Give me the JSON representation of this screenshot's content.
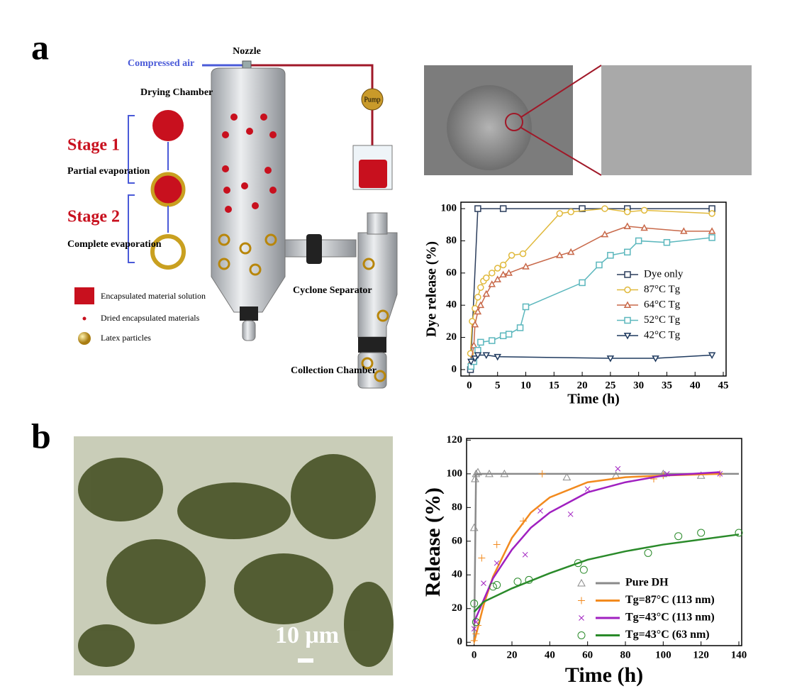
{
  "panels": [
    "a",
    "b"
  ],
  "diagram": {
    "compressed_air": "Compressed air",
    "nozzle": "Nozzle",
    "pump": "Pump",
    "drying_chamber": "Drying Chamber",
    "stage1": "Stage 1",
    "stage1_desc": "Partial evaporation",
    "stage2": "Stage 2",
    "stage2_desc": "Complete evaporation",
    "legend": [
      "Encapsulated material solution",
      "Dried encapsulated materials",
      "Latex particles"
    ],
    "cyclone": "Cyclone Separator",
    "collection": "Collection Chamber"
  },
  "micrograph": {
    "scale_bar": "10 μm"
  },
  "chart_data": [
    {
      "type": "line",
      "xlabel": "Time (h)",
      "ylabel": "Dye release (%)",
      "xlim": [
        -1.5,
        45.5
      ],
      "ylim": [
        -4,
        104
      ],
      "xticks": [
        0,
        5,
        10,
        15,
        20,
        25,
        30,
        35,
        40,
        45
      ],
      "yticks": [
        0,
        20,
        40,
        60,
        80,
        100
      ],
      "legend": "right",
      "series": [
        {
          "name": "Dye only",
          "color": "#2b3d5c",
          "marker": "square",
          "x": [
            0.2,
            1.5,
            6,
            20,
            28,
            43
          ],
          "values": [
            0,
            100,
            100,
            100,
            100,
            100
          ]
        },
        {
          "name": "87°C Tg",
          "color": "#e0b93c",
          "marker": "circle",
          "x": [
            0.2,
            0.5,
            1,
            1.5,
            2,
            2.5,
            3,
            4,
            5,
            6,
            7.5,
            9.5,
            16,
            18,
            24,
            28,
            31,
            43
          ],
          "values": [
            10,
            30,
            38,
            45,
            51,
            55,
            57,
            60,
            63,
            65,
            71,
            72,
            97,
            98,
            100,
            98,
            99,
            97
          ]
        },
        {
          "name": "64°C Tg",
          "color": "#c8694a",
          "marker": "triangle-up",
          "x": [
            0.3,
            0.8,
            1,
            1.5,
            2,
            3,
            4,
            5,
            6,
            7,
            10,
            16,
            18,
            24,
            28,
            31,
            38,
            43
          ],
          "values": [
            5,
            15,
            28,
            36,
            40,
            47,
            53,
            56,
            59,
            60,
            64,
            71,
            73,
            84,
            89,
            88,
            86,
            86
          ]
        },
        {
          "name": "52°C Tg",
          "color": "#5bb7bd",
          "marker": "square",
          "x": [
            0.3,
            0.8,
            1.5,
            2,
            4,
            6,
            7,
            9,
            10,
            20,
            23,
            25,
            28,
            30,
            35,
            43
          ],
          "values": [
            2,
            5,
            12,
            17,
            18,
            21,
            22,
            26,
            39,
            54,
            65,
            71,
            73,
            80,
            79,
            82
          ]
        },
        {
          "name": "42°C Tg",
          "color": "#1f3a5f",
          "marker": "triangle-down",
          "x": [
            0.3,
            1,
            1.5,
            3,
            5,
            25,
            33,
            43
          ],
          "values": [
            5,
            7,
            9,
            9,
            8,
            7,
            7,
            9
          ]
        }
      ]
    },
    {
      "type": "scatter",
      "xlabel": "Time (h)",
      "ylabel": "Release (%)",
      "xlim": [
        -4,
        141.5
      ],
      "ylim": [
        -2,
        121
      ],
      "xticks": [
        0,
        20,
        40,
        60,
        80,
        100,
        120,
        140
      ],
      "yticks": [
        0,
        20,
        40,
        60,
        80,
        100,
        120
      ],
      "legend": "lower right",
      "series": [
        {
          "name": "Pure DH",
          "color": "#8a8a8a",
          "marker": "triangle-up",
          "x": [
            0,
            0.5,
            1,
            2,
            8,
            16,
            49,
            75,
            100,
            120
          ],
          "values": [
            68,
            97,
            100,
            101,
            100,
            100,
            98,
            99,
            100,
            99
          ],
          "fit_x": [
            0,
            1,
            140
          ],
          "fit_values": [
            0,
            100,
            100
          ]
        },
        {
          "name": "Tg=87°C (113 nm)",
          "color": "#f28a1e",
          "marker": "plus",
          "x": [
            0,
            1,
            2,
            4,
            12,
            26,
            36,
            95,
            100,
            130
          ],
          "values": [
            1,
            5,
            10,
            50,
            58,
            72,
            100,
            97,
            99,
            100
          ],
          "fit_x": [
            0,
            5,
            10,
            20,
            30,
            40,
            60,
            80,
            100,
            130
          ],
          "fit_values": [
            0,
            22,
            39,
            62,
            77,
            86,
            95,
            98,
            99,
            100
          ]
        },
        {
          "name": "Tg=43°C (113 nm)",
          "color": "#a020c0",
          "marker": "cross",
          "x": [
            0,
            1,
            5,
            12,
            27,
            35,
            51,
            60,
            76,
            102,
            130
          ],
          "values": [
            8,
            12,
            35,
            47,
            52,
            78,
            76,
            91,
            103,
            100,
            100
          ],
          "fit_x": [
            0,
            10,
            20,
            30,
            40,
            60,
            80,
            100,
            130
          ],
          "fit_values": [
            12,
            38,
            55,
            68,
            77,
            89,
            95,
            99,
            101
          ]
        },
        {
          "name": "Tg=43°C (63 nm)",
          "color": "#2a8a2a",
          "marker": "circle",
          "x": [
            0,
            1,
            10,
            12,
            23,
            29,
            55,
            58,
            92,
            108,
            120,
            140
          ],
          "values": [
            23,
            12,
            33,
            34,
            36,
            37,
            47,
            43,
            53,
            63,
            65,
            65
          ],
          "fit_x": [
            0,
            5,
            20,
            40,
            60,
            80,
            100,
            120,
            140
          ],
          "fit_values": [
            18,
            24,
            32,
            41,
            49,
            54,
            58,
            61,
            64
          ]
        }
      ]
    }
  ]
}
